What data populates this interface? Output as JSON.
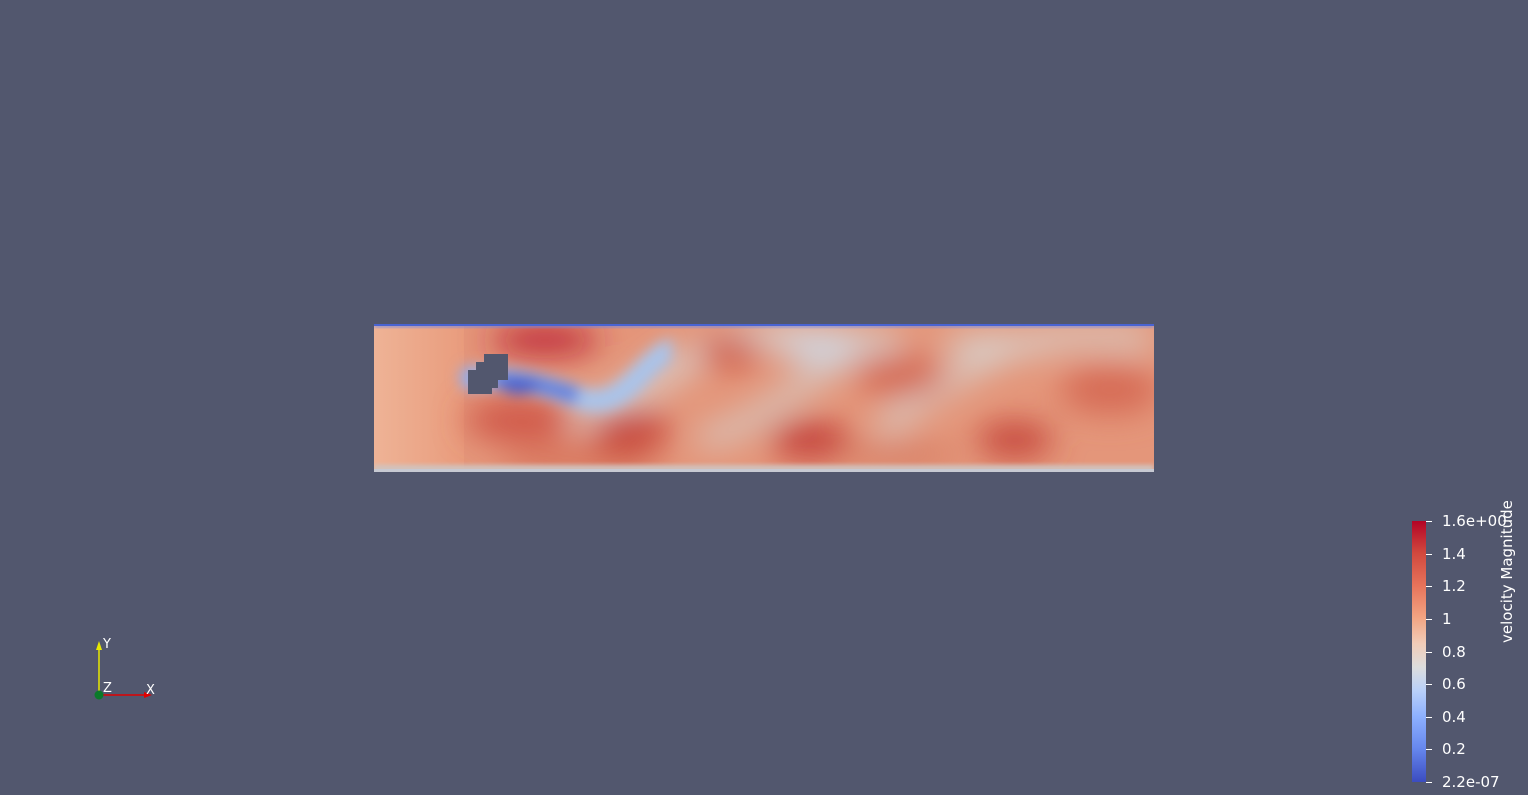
{
  "colorbar": {
    "title": "velocity Magnitude",
    "ticks": [
      "1.6e+00",
      "1.4",
      "1.2",
      "1",
      "0.8",
      "0.6",
      "0.4",
      "0.2",
      "2.2e-07"
    ],
    "range": [
      2.2e-07,
      1.6
    ],
    "colormap": "cool-to-warm",
    "colors": {
      "high": "#b40426",
      "mid": "#dddddd",
      "low": "#3b4cc0"
    }
  },
  "axes": {
    "x_label": "X",
    "y_label": "Y",
    "z_label": "Z",
    "x_color": "#ff0000",
    "y_color": "#ffff00",
    "z_color": "#00aa00"
  },
  "background_color": "#52576e"
}
